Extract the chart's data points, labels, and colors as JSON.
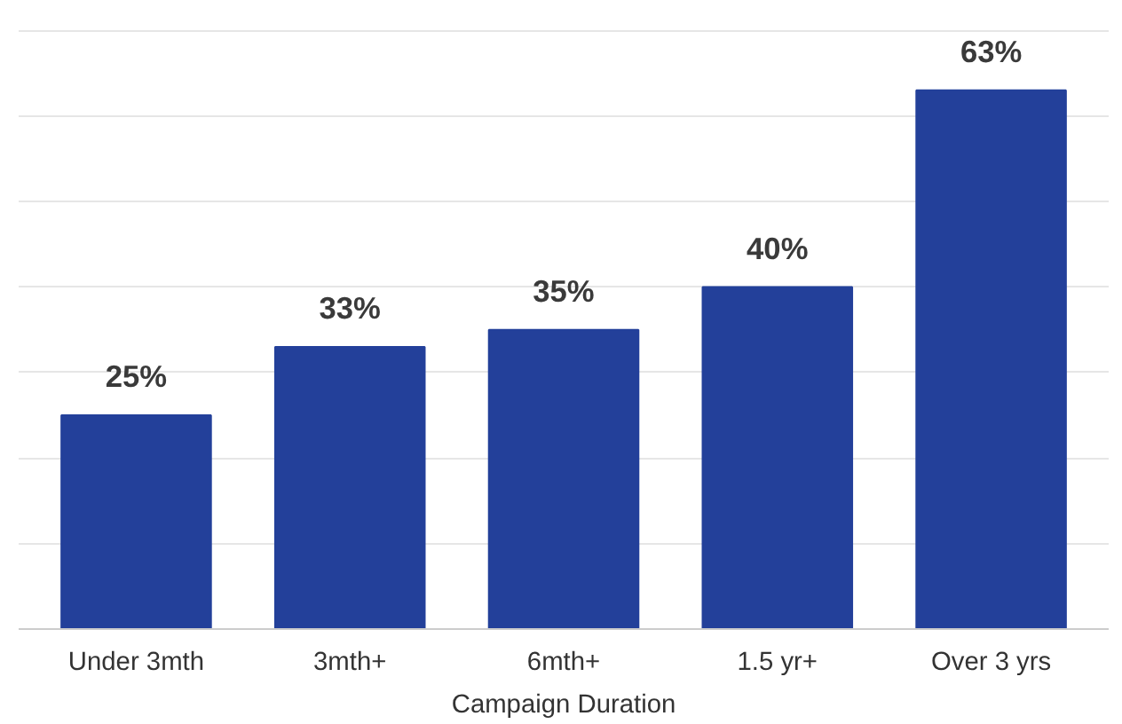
{
  "chart_data": {
    "type": "bar",
    "xlabel": "Campaign Duration",
    "categories": [
      "Under 3mth",
      "3mth+",
      "6mth+",
      "1.5 yr+",
      "Over 3 yrs"
    ],
    "values": [
      25,
      33,
      35,
      40,
      63
    ],
    "value_labels": [
      "25%",
      "33%",
      "35%",
      "40%",
      "63%"
    ],
    "color": "#23409a",
    "grid": "y",
    "tick_labels": "x"
  }
}
